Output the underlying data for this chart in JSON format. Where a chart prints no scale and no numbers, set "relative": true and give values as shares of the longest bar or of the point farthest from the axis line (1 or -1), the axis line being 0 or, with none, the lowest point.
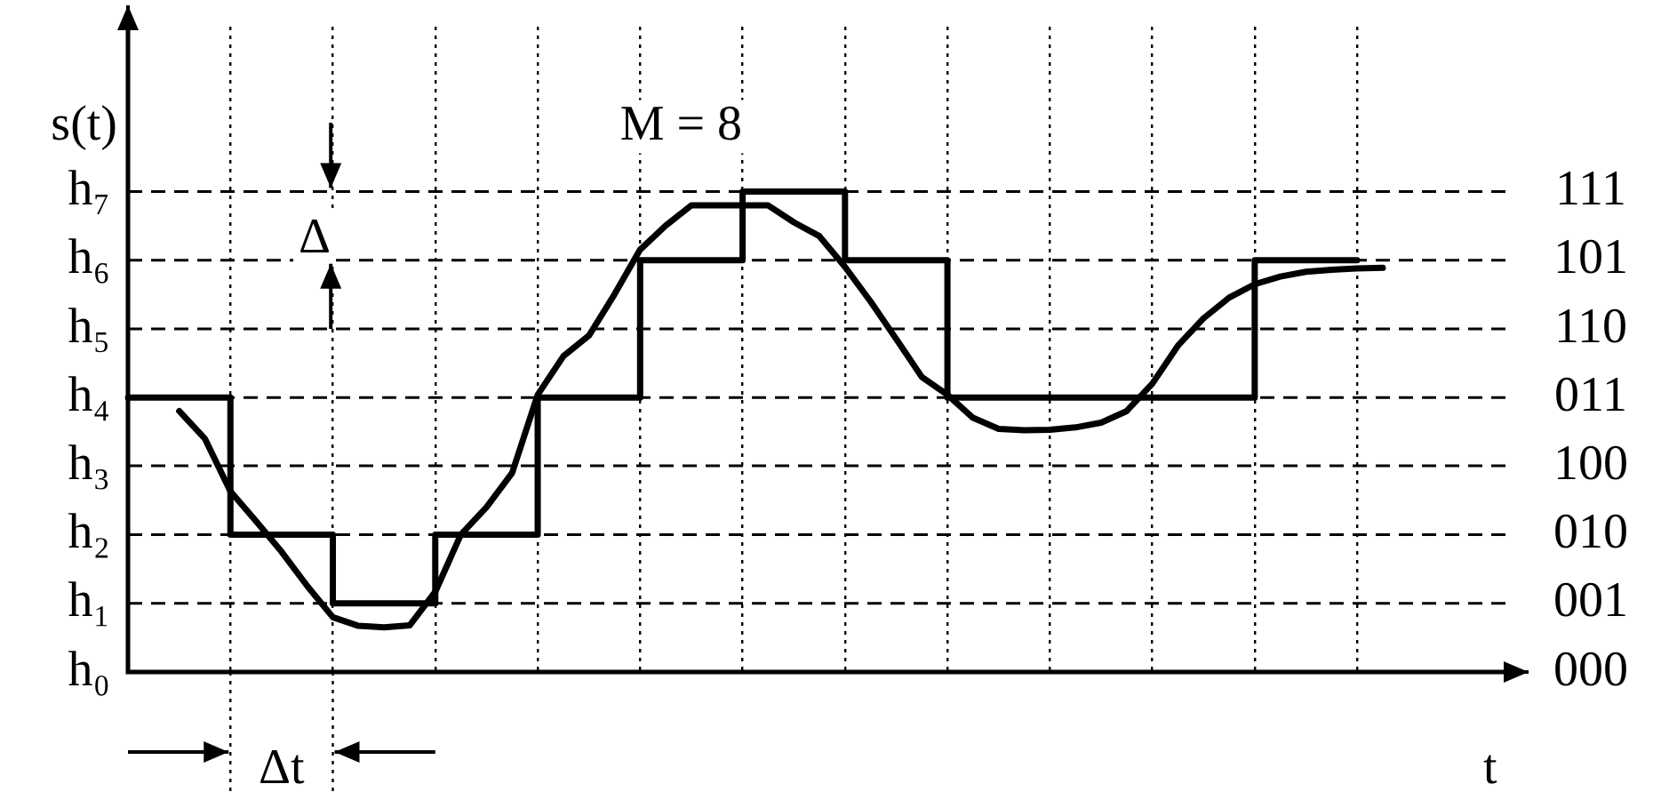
{
  "chart_data": {
    "type": "step",
    "relative": true,
    "ylabel": "s(t)",
    "xlabel": "t",
    "annotations": [
      "M = 8",
      "Δ",
      "Δt",
      "000",
      "001",
      "010",
      "100",
      "011",
      "110",
      "101",
      "111"
    ],
    "categories": [
      null,
      null,
      null,
      null,
      null,
      null,
      null,
      null,
      null,
      null,
      null,
      null,
      null,
      null,
      null,
      null,
      null,
      null,
      null,
      null,
      null,
      null,
      null,
      null,
      null,
      null,
      null,
      null,
      null,
      null,
      null,
      null,
      null,
      null,
      null,
      null,
      null,
      null,
      null,
      null,
      null,
      null,
      null,
      null,
      null,
      null,
      null,
      null,
      null,
      null,
      null,
      null,
      null,
      null,
      null
    ],
    "ref_lines": [
      {
        "axis": "y",
        "value": 0,
        "label": "h₀",
        "line_style": "solid"
      },
      {
        "axis": "y",
        "value": 0.143,
        "label": "h₁",
        "line_style": "dashed"
      },
      {
        "axis": "y",
        "value": 0.286,
        "label": "h₂",
        "line_style": "dashed"
      },
      {
        "axis": "y",
        "value": 0.429,
        "label": "h₃",
        "line_style": "dashed"
      },
      {
        "axis": "y",
        "value": 0.571,
        "label": "h₄",
        "line_style": "dashed"
      },
      {
        "axis": "y",
        "value": 0.714,
        "label": "h₅",
        "line_style": "dashed"
      },
      {
        "axis": "y",
        "value": 0.857,
        "label": "h₆",
        "line_style": "dashed"
      },
      {
        "axis": "y",
        "value": 1,
        "label": "h₇",
        "line_style": "dashed"
      }
    ],
    "grid": "x",
    "legend": false,
    "marker": "none",
    "line_style": "solid",
    "series": [
      {
        "type": "step",
        "color": "#000000",
        "values": [
          0.571,
          null,
          null,
          null,
          0.286,
          null,
          null,
          null,
          0.143,
          null,
          null,
          null,
          0.286,
          null,
          null,
          null,
          0.571,
          null,
          null,
          null,
          0.857,
          null,
          null,
          null,
          1,
          null,
          null,
          null,
          0.857,
          null,
          null,
          null,
          0.571,
          null,
          null,
          null,
          0.571,
          null,
          null,
          null,
          0.571,
          null,
          null,
          null,
          0.857,
          null,
          null,
          null,
          0.857,
          null,
          null,
          null,
          null,
          null,
          null
        ]
      },
      {
        "type": "line",
        "color": "#000000",
        "values": [
          null,
          null,
          0.543,
          0.486,
          0.376,
          0.314,
          0.25,
          0.179,
          0.114,
          0.096,
          0.093,
          0.097,
          0.167,
          0.286,
          0.343,
          0.414,
          0.577,
          0.657,
          0.7,
          0.786,
          0.879,
          0.929,
          0.971,
          0.971,
          0.971,
          0.971,
          0.936,
          0.907,
          0.843,
          0.771,
          0.693,
          0.614,
          0.577,
          0.529,
          0.506,
          0.503,
          0.504,
          0.509,
          0.519,
          0.543,
          0.6,
          0.679,
          0.736,
          0.779,
          0.807,
          0.823,
          0.833,
          0.837,
          0.84,
          0.841,
          null,
          null,
          null,
          null,
          null
        ]
      }
    ]
  }
}
